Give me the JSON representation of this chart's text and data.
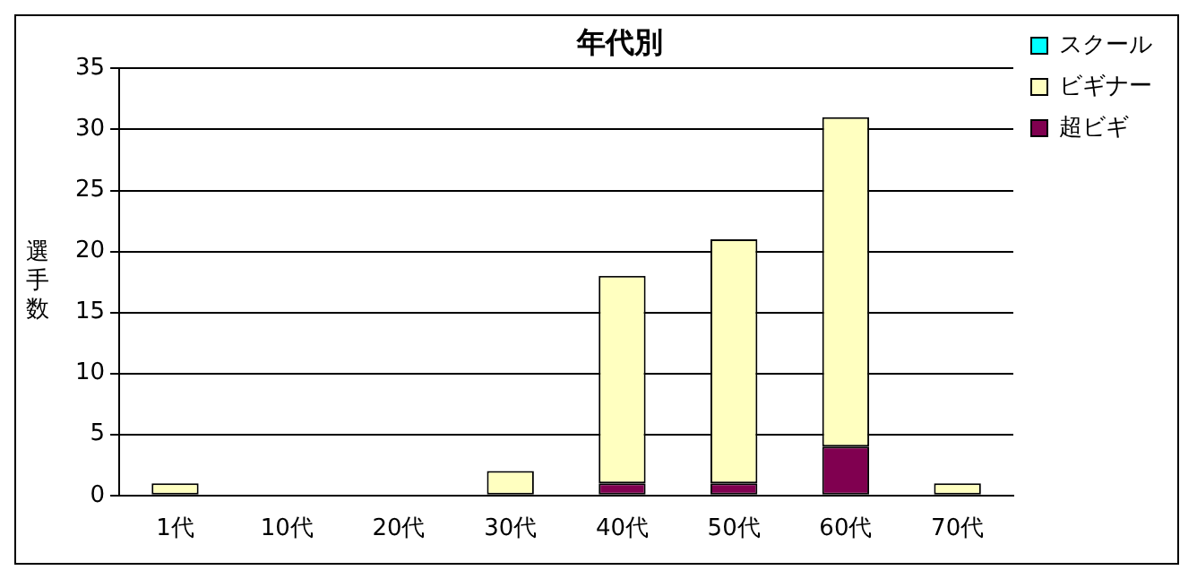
{
  "chart_data": {
    "type": "bar",
    "title": "年代別",
    "ylabel": "選手数",
    "categories": [
      "1代",
      "10代",
      "20代",
      "30代",
      "40代",
      "50代",
      "60代",
      "70代"
    ],
    "series": [
      {
        "name": "超ビギ",
        "color": "#800050",
        "values": [
          0,
          0,
          0,
          0,
          1,
          1,
          4,
          0
        ]
      },
      {
        "name": "ビギナー",
        "color": "#ffffc0",
        "values": [
          1,
          0,
          0,
          2,
          17,
          20,
          27,
          1
        ]
      },
      {
        "name": "スクール",
        "color": "#00ffff",
        "values": [
          0,
          0,
          0,
          0,
          0,
          0,
          0,
          0
        ]
      }
    ],
    "stacked": true,
    "ylim": [
      0,
      35
    ],
    "yticks": [
      0,
      5,
      10,
      15,
      20,
      25,
      30,
      35
    ],
    "grid": "y",
    "legend": "top right"
  }
}
